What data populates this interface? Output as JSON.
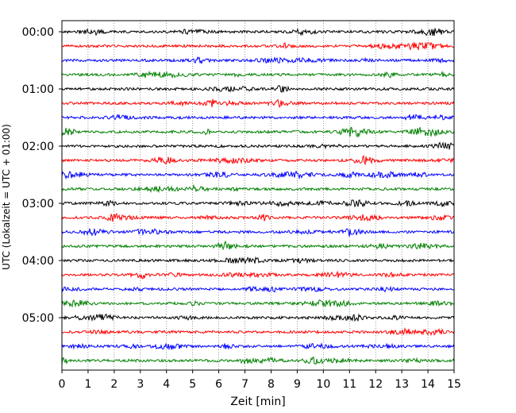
{
  "chart_data": {
    "type": "line",
    "subtype": "helicorder",
    "title": "",
    "xlabel": "Zeit  [min]",
    "ylabel": "UTC (Lokalzeit = UTC + 01:00)",
    "xlim": [
      0,
      15
    ],
    "x_ticks": [
      "0",
      "1",
      "2",
      "3",
      "4",
      "5",
      "6",
      "7",
      "8",
      "9",
      "10",
      "11",
      "12",
      "13",
      "14",
      "15"
    ],
    "y_tick_labels": [
      "00:00",
      "01:00",
      "02:00",
      "03:00",
      "04:00",
      "05:00"
    ],
    "grid": "vertical dotted at each minute",
    "trace_minutes": 15,
    "traces_per_hour": 4,
    "trace_count": 24,
    "trace_colors": [
      "#000000",
      "#ff0000",
      "#0000ff",
      "#008000"
    ]
  }
}
